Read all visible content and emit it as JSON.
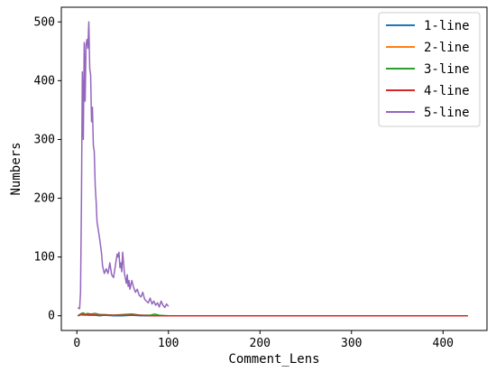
{
  "chart_data": {
    "type": "line",
    "title": "",
    "xlabel": "Comment_Lens",
    "ylabel": "Numbers",
    "xlim": [
      -17,
      448
    ],
    "ylim": [
      -25,
      525
    ],
    "xticks": [
      0,
      100,
      200,
      300,
      400
    ],
    "yticks": [
      0,
      100,
      200,
      300,
      400,
      500
    ],
    "grid": false,
    "legend_position": "upper right",
    "series": [
      {
        "name": "1-line",
        "color": "#1f77b4",
        "x": [
          1,
          3,
          5,
          7,
          9,
          12,
          15,
          20,
          25,
          30,
          40,
          50,
          60,
          70,
          80,
          90,
          100,
          150,
          200,
          250,
          300,
          350,
          400,
          427
        ],
        "y": [
          0,
          1,
          2,
          1,
          2,
          1,
          1,
          1,
          0,
          1,
          0,
          0,
          1,
          0,
          0,
          0,
          0,
          0,
          0,
          0,
          0,
          0,
          0,
          0
        ]
      },
      {
        "name": "2-line",
        "color": "#ff7f0e",
        "x": [
          1,
          3,
          5,
          7,
          9,
          12,
          15,
          20,
          25,
          30,
          40,
          50,
          60,
          70,
          80,
          90,
          100,
          150,
          200,
          250,
          300,
          350,
          400,
          427
        ],
        "y": [
          0,
          1,
          2,
          3,
          2,
          3,
          2,
          2,
          1,
          1,
          1,
          1,
          2,
          1,
          1,
          0,
          0,
          0,
          0,
          0,
          0,
          0,
          0,
          0
        ]
      },
      {
        "name": "3-line",
        "color": "#2ca02c",
        "x": [
          1,
          3,
          5,
          7,
          9,
          12,
          15,
          20,
          25,
          30,
          40,
          50,
          60,
          70,
          80,
          85,
          90,
          100,
          150,
          200,
          250,
          300,
          350,
          400,
          427
        ],
        "y": [
          0,
          2,
          4,
          5,
          3,
          4,
          3,
          4,
          2,
          2,
          1,
          2,
          3,
          1,
          1,
          3,
          1,
          0,
          0,
          0,
          0,
          0,
          0,
          0,
          0
        ]
      },
      {
        "name": "4-line",
        "color": "#d62728",
        "x": [
          1,
          3,
          5,
          7,
          9,
          12,
          15,
          20,
          25,
          30,
          40,
          50,
          60,
          70,
          80,
          90,
          100,
          150,
          200,
          250,
          300,
          350,
          400,
          427
        ],
        "y": [
          0,
          1,
          2,
          2,
          1,
          2,
          2,
          1,
          1,
          1,
          1,
          1,
          1,
          1,
          0,
          0,
          0,
          0,
          0,
          0,
          0,
          0,
          0,
          0
        ]
      },
      {
        "name": "5-line",
        "color": "#9467bd",
        "x": [
          1,
          2,
          3,
          4,
          5,
          6,
          7,
          8,
          9,
          10,
          11,
          12,
          13,
          14,
          15,
          16,
          17,
          18,
          19,
          20,
          21,
          22,
          23,
          24,
          25,
          26,
          27,
          28,
          29,
          30,
          32,
          34,
          36,
          38,
          40,
          42,
          44,
          45,
          46,
          47,
          48,
          49,
          50,
          52,
          54,
          55,
          56,
          57,
          58,
          60,
          62,
          64,
          66,
          68,
          70,
          72,
          74,
          76,
          78,
          80,
          82,
          84,
          86,
          88,
          90,
          92,
          94,
          96,
          98,
          100
        ],
        "y": [
          14,
          13,
          12,
          40,
          190,
          415,
          300,
          465,
          365,
          460,
          470,
          455,
          500,
          420,
          410,
          330,
          355,
          290,
          280,
          220,
          195,
          160,
          150,
          140,
          130,
          118,
          105,
          85,
          78,
          72,
          80,
          72,
          90,
          70,
          65,
          85,
          105,
          100,
          108,
          82,
          90,
          75,
          108,
          72,
          55,
          70,
          50,
          60,
          45,
          60,
          48,
          40,
          45,
          35,
          32,
          40,
          28,
          25,
          22,
          30,
          20,
          25,
          18,
          22,
          15,
          25,
          18,
          14,
          20,
          16
        ]
      }
    ]
  }
}
